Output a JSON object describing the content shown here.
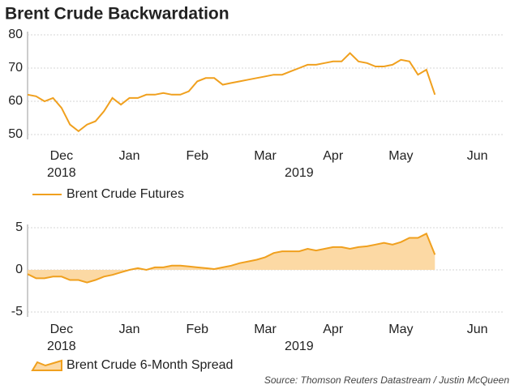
{
  "chart_data": [
    {
      "type": "line",
      "title": "Brent Crude Backwardation",
      "categories": [
        null,
        null,
        null,
        null,
        "Dec",
        null,
        null,
        null,
        null,
        null,
        null,
        null,
        "Jan",
        null,
        null,
        null,
        null,
        null,
        null,
        null,
        "Feb",
        null,
        null,
        null,
        null,
        null,
        null,
        null,
        "Mar",
        null,
        null,
        null,
        null,
        null,
        null,
        null,
        "Apr",
        null,
        null,
        null,
        null,
        null,
        null,
        null,
        "May",
        null,
        null,
        null,
        null,
        null,
        null,
        null,
        null,
        "Jun",
        null,
        null,
        null
      ],
      "categories2": [
        null,
        null,
        null,
        null,
        "2018",
        null,
        null,
        null,
        null,
        null,
        null,
        null,
        null,
        null,
        null,
        null,
        null,
        null,
        null,
        null,
        null,
        null,
        null,
        null,
        null,
        null,
        null,
        null,
        null,
        null,
        null,
        null,
        "2019",
        null,
        null,
        null,
        null,
        null,
        null,
        null,
        null,
        null,
        null,
        null,
        null,
        null,
        null,
        null,
        null,
        null,
        null,
        null,
        null,
        null,
        null,
        null,
        null
      ],
      "series": [
        {
          "name": "Brent Crude Futures",
          "color": "#f0a01e",
          "values": [
            62,
            61.5,
            60,
            61,
            58,
            53,
            51,
            53,
            54,
            57,
            61,
            59,
            61,
            61,
            62,
            62,
            62.5,
            62,
            62,
            63,
            66,
            67,
            67,
            65,
            65.5,
            66,
            66.5,
            67,
            67.5,
            68,
            68,
            69,
            70,
            71,
            71,
            71.5,
            72,
            72,
            74.5,
            72,
            71.5,
            70.5,
            70.5,
            71,
            72.5,
            72,
            68,
            69.5,
            62,
            null,
            null,
            null,
            null,
            null,
            null,
            null,
            null
          ]
        }
      ],
      "ylim": [
        50,
        80
      ],
      "yticks": [
        50,
        60,
        70,
        80
      ],
      "grid": true
    },
    {
      "type": "area",
      "categories": [
        null,
        null,
        null,
        null,
        "Dec",
        null,
        null,
        null,
        null,
        null,
        null,
        null,
        "Jan",
        null,
        null,
        null,
        null,
        null,
        null,
        null,
        "Feb",
        null,
        null,
        null,
        null,
        null,
        null,
        null,
        "Mar",
        null,
        null,
        null,
        null,
        null,
        null,
        null,
        "Apr",
        null,
        null,
        null,
        null,
        null,
        null,
        null,
        "May",
        null,
        null,
        null,
        null,
        null,
        null,
        null,
        null,
        "Jun",
        null,
        null,
        null
      ],
      "categories2": [
        null,
        null,
        null,
        null,
        "2018",
        null,
        null,
        null,
        null,
        null,
        null,
        null,
        null,
        null,
        null,
        null,
        null,
        null,
        null,
        null,
        null,
        null,
        null,
        null,
        null,
        null,
        null,
        null,
        null,
        null,
        null,
        null,
        "2019",
        null,
        null,
        null,
        null,
        null,
        null,
        null,
        null,
        null,
        null,
        null,
        null,
        null,
        null,
        null,
        null,
        null,
        null,
        null,
        null,
        null,
        null,
        null,
        null
      ],
      "series": [
        {
          "name": "Brent Crude 6-Month Spread",
          "color": "#f0a01e",
          "fill": "#fcd9a4",
          "values": [
            -0.5,
            -1,
            -1,
            -0.8,
            -0.8,
            -1.2,
            -1.2,
            -1.5,
            -1.2,
            -0.8,
            -0.6,
            -0.3,
            0,
            0.2,
            0,
            0.3,
            0.3,
            0.5,
            0.5,
            0.4,
            0.3,
            0.2,
            0.1,
            0.3,
            0.5,
            0.8,
            1,
            1.2,
            1.5,
            2,
            2.2,
            2.2,
            2.2,
            2.5,
            2.3,
            2.5,
            2.7,
            2.7,
            2.5,
            2.7,
            2.8,
            3,
            3.2,
            3,
            3.3,
            3.8,
            3.8,
            4.3,
            1.8,
            null,
            null,
            null,
            null,
            null,
            null,
            null,
            null
          ]
        }
      ],
      "ylim": [
        -5,
        5
      ],
      "yticks": [
        -5,
        0,
        5
      ],
      "grid": true,
      "source": "Source: Thomson Reuters Datastream / Justin McQueen"
    }
  ]
}
